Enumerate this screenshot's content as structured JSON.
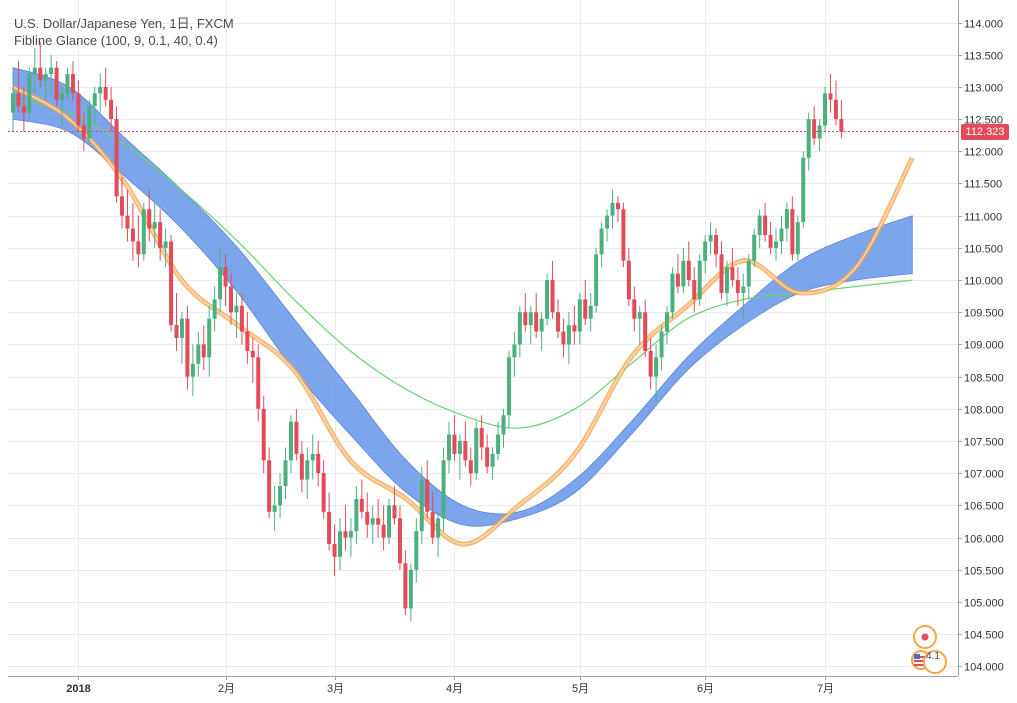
{
  "header": {
    "title": "U.S. Dollar/Japanese Yen, 1日, FXCM",
    "indicator": "Fibline Glance (100, 9, 0.1, 40, 0.4)"
  },
  "price_tag": {
    "label": "112.323",
    "color": "#e24b5a"
  },
  "markers": {
    "count_label": "4.1"
  },
  "colors": {
    "up": "#4bb07e",
    "down": "#e24b5a",
    "cloud": "#6f9bea",
    "fast_line": "#f3a24c",
    "slow_line": "#66d66e",
    "grid": "#e7ecf2"
  },
  "chart_data": {
    "type": "candlestick",
    "title": "U.S. Dollar/Japanese Yen, 1日, FXCM",
    "xlabel": "",
    "ylabel": "",
    "ylim": [
      103.85,
      114.35
    ],
    "y_ticks": [
      "104.000",
      "104.500",
      "105.000",
      "105.500",
      "106.000",
      "106.500",
      "107.000",
      "107.500",
      "108.000",
      "108.500",
      "109.000",
      "109.500",
      "110.000",
      "110.500",
      "111.000",
      "111.500",
      "112.000",
      "112.500",
      "113.000",
      "113.500",
      "114.000"
    ],
    "x_ticks": [
      {
        "label": "2018",
        "bar": 12
      },
      {
        "label": "2月",
        "bar": 39
      },
      {
        "label": "3月",
        "bar": 59
      },
      {
        "label": "4月",
        "bar": 81
      },
      {
        "label": "5月",
        "bar": 104
      },
      {
        "label": "6月",
        "bar": 127
      },
      {
        "label": "7月",
        "bar": 149
      }
    ],
    "bar_count": 166,
    "last_price": 112.323,
    "candles": [
      [
        112.6,
        113.2,
        112.3,
        112.9
      ],
      [
        112.9,
        113.4,
        112.6,
        112.7
      ],
      [
        112.7,
        113.0,
        112.3,
        112.6
      ],
      [
        112.6,
        113.3,
        112.5,
        113.2
      ],
      [
        113.2,
        113.6,
        112.9,
        113.3
      ],
      [
        113.3,
        113.7,
        113.0,
        113.1
      ],
      [
        113.1,
        113.3,
        112.8,
        113.2
      ],
      [
        113.2,
        113.5,
        112.9,
        113.3
      ],
      [
        113.3,
        113.4,
        112.7,
        112.8
      ],
      [
        112.8,
        113.0,
        112.4,
        112.9
      ],
      [
        112.9,
        113.3,
        112.8,
        113.2
      ],
      [
        113.2,
        113.4,
        112.8,
        112.9
      ],
      [
        112.9,
        113.1,
        112.3,
        112.4
      ],
      [
        112.4,
        112.6,
        112.0,
        112.2
      ],
      [
        112.2,
        112.8,
        112.1,
        112.7
      ],
      [
        112.7,
        113.0,
        112.4,
        112.9
      ],
      [
        112.9,
        113.2,
        112.6,
        113.0
      ],
      [
        113.0,
        113.3,
        112.7,
        112.8
      ],
      [
        112.8,
        113.0,
        112.3,
        112.5
      ],
      [
        112.5,
        112.7,
        111.2,
        111.3
      ],
      [
        111.3,
        111.6,
        110.8,
        111.0
      ],
      [
        111.0,
        111.4,
        110.6,
        110.8
      ],
      [
        110.8,
        111.2,
        110.3,
        110.6
      ],
      [
        110.6,
        111.0,
        110.2,
        110.4
      ],
      [
        110.4,
        111.2,
        110.3,
        111.1
      ],
      [
        111.1,
        111.4,
        110.6,
        110.8
      ],
      [
        110.8,
        111.2,
        110.5,
        110.9
      ],
      [
        110.9,
        111.1,
        110.3,
        110.5
      ],
      [
        110.5,
        110.8,
        110.2,
        110.6
      ],
      [
        110.6,
        110.7,
        109.2,
        109.3
      ],
      [
        109.3,
        109.8,
        108.9,
        109.1
      ],
      [
        109.1,
        109.5,
        108.7,
        109.4
      ],
      [
        109.4,
        109.6,
        108.3,
        108.5
      ],
      [
        108.5,
        109.0,
        108.2,
        108.7
      ],
      [
        108.7,
        109.2,
        108.5,
        109.0
      ],
      [
        109.0,
        109.3,
        108.6,
        108.8
      ],
      [
        108.8,
        109.6,
        108.5,
        109.4
      ],
      [
        109.4,
        109.9,
        109.2,
        109.7
      ],
      [
        109.7,
        110.5,
        109.5,
        110.2
      ],
      [
        110.2,
        110.4,
        109.6,
        109.9
      ],
      [
        109.9,
        110.1,
        109.3,
        109.5
      ],
      [
        109.5,
        109.8,
        109.1,
        109.6
      ],
      [
        109.6,
        109.8,
        109.0,
        109.2
      ],
      [
        109.2,
        109.5,
        108.7,
        108.9
      ],
      [
        108.9,
        109.1,
        108.4,
        108.8
      ],
      [
        108.8,
        109.0,
        107.8,
        108.0
      ],
      [
        108.0,
        108.2,
        107.0,
        107.2
      ],
      [
        107.2,
        107.4,
        106.3,
        106.4
      ],
      [
        106.4,
        106.8,
        106.1,
        106.5
      ],
      [
        106.5,
        107.0,
        106.3,
        106.8
      ],
      [
        106.8,
        107.4,
        106.6,
        107.2
      ],
      [
        107.2,
        107.9,
        107.0,
        107.8
      ],
      [
        107.8,
        108.0,
        107.2,
        107.3
      ],
      [
        107.3,
        107.5,
        106.7,
        106.9
      ],
      [
        106.9,
        107.4,
        106.6,
        107.2
      ],
      [
        107.2,
        107.6,
        106.9,
        107.3
      ],
      [
        107.3,
        107.5,
        106.8,
        107.0
      ],
      [
        107.0,
        107.2,
        106.3,
        106.4
      ],
      [
        106.4,
        106.7,
        105.8,
        105.9
      ],
      [
        105.9,
        106.2,
        105.4,
        105.7
      ],
      [
        105.7,
        106.3,
        105.5,
        106.1
      ],
      [
        106.1,
        106.5,
        105.8,
        106.0
      ],
      [
        106.0,
        106.3,
        105.7,
        106.1
      ],
      [
        106.1,
        106.8,
        105.9,
        106.6
      ],
      [
        106.6,
        106.9,
        106.3,
        106.4
      ],
      [
        106.4,
        106.7,
        106.0,
        106.2
      ],
      [
        106.2,
        106.5,
        105.9,
        106.3
      ],
      [
        106.3,
        106.6,
        106.0,
        106.2
      ],
      [
        106.2,
        106.5,
        105.8,
        106.0
      ],
      [
        106.0,
        106.6,
        105.9,
        106.5
      ],
      [
        106.5,
        106.8,
        106.2,
        106.3
      ],
      [
        106.3,
        106.5,
        105.5,
        105.6
      ],
      [
        105.6,
        105.8,
        104.8,
        104.9
      ],
      [
        104.9,
        105.6,
        104.7,
        105.5
      ],
      [
        105.5,
        106.3,
        105.3,
        106.1
      ],
      [
        106.1,
        107.1,
        105.9,
        106.9
      ],
      [
        106.9,
        107.2,
        106.3,
        106.4
      ],
      [
        106.4,
        106.7,
        105.9,
        106.0
      ],
      [
        106.0,
        106.4,
        105.7,
        106.3
      ],
      [
        106.3,
        107.4,
        106.1,
        107.2
      ],
      [
        107.2,
        107.8,
        107.0,
        107.6
      ],
      [
        107.6,
        107.9,
        107.2,
        107.3
      ],
      [
        107.3,
        107.6,
        106.9,
        107.5
      ],
      [
        107.5,
        107.8,
        107.1,
        107.2
      ],
      [
        107.2,
        107.4,
        106.8,
        107.0
      ],
      [
        107.0,
        107.8,
        106.9,
        107.7
      ],
      [
        107.7,
        107.9,
        107.2,
        107.4
      ],
      [
        107.4,
        107.6,
        107.0,
        107.1
      ],
      [
        107.1,
        107.4,
        106.9,
        107.3
      ],
      [
        107.3,
        107.8,
        107.2,
        107.6
      ],
      [
        107.6,
        108.0,
        107.4,
        107.9
      ],
      [
        107.9,
        108.9,
        107.7,
        108.8
      ],
      [
        108.8,
        109.2,
        108.5,
        109.0
      ],
      [
        109.0,
        109.6,
        108.8,
        109.5
      ],
      [
        109.5,
        109.8,
        109.2,
        109.3
      ],
      [
        109.3,
        109.6,
        109.0,
        109.5
      ],
      [
        109.5,
        109.8,
        109.1,
        109.2
      ],
      [
        109.2,
        109.5,
        108.9,
        109.4
      ],
      [
        109.4,
        110.1,
        109.3,
        110.0
      ],
      [
        110.0,
        110.3,
        109.4,
        109.5
      ],
      [
        109.5,
        109.7,
        109.1,
        109.2
      ],
      [
        109.2,
        109.4,
        108.8,
        109.0
      ],
      [
        109.0,
        109.5,
        108.7,
        109.3
      ],
      [
        109.3,
        109.6,
        109.0,
        109.2
      ],
      [
        109.2,
        109.8,
        109.0,
        109.7
      ],
      [
        109.7,
        110.0,
        109.3,
        109.4
      ],
      [
        109.4,
        109.8,
        109.2,
        109.6
      ],
      [
        109.6,
        110.5,
        109.5,
        110.4
      ],
      [
        110.4,
        110.9,
        110.2,
        110.8
      ],
      [
        110.8,
        111.1,
        110.6,
        111.0
      ],
      [
        111.0,
        111.4,
        110.8,
        111.2
      ],
      [
        111.2,
        111.3,
        110.9,
        111.1
      ],
      [
        111.1,
        111.2,
        110.2,
        110.3
      ],
      [
        110.3,
        110.5,
        109.6,
        109.7
      ],
      [
        109.7,
        109.9,
        109.2,
        109.4
      ],
      [
        109.4,
        109.6,
        109.0,
        109.5
      ],
      [
        109.5,
        109.7,
        108.8,
        108.9
      ],
      [
        108.9,
        109.1,
        108.3,
        108.5
      ],
      [
        108.5,
        109.0,
        108.1,
        108.8
      ],
      [
        108.8,
        109.3,
        108.6,
        109.2
      ],
      [
        109.2,
        109.6,
        109.0,
        109.5
      ],
      [
        109.5,
        110.2,
        109.4,
        110.1
      ],
      [
        110.1,
        110.4,
        109.8,
        109.9
      ],
      [
        109.9,
        110.5,
        109.8,
        110.3
      ],
      [
        110.3,
        110.6,
        109.9,
        110.0
      ],
      [
        110.0,
        110.2,
        109.5,
        109.7
      ],
      [
        109.7,
        110.4,
        109.6,
        110.3
      ],
      [
        110.3,
        110.7,
        110.1,
        110.6
      ],
      [
        110.6,
        110.9,
        110.4,
        110.7
      ],
      [
        110.7,
        110.8,
        110.2,
        110.4
      ],
      [
        110.4,
        110.6,
        109.7,
        109.8
      ],
      [
        109.8,
        110.3,
        109.6,
        110.2
      ],
      [
        110.2,
        110.5,
        109.9,
        110.0
      ],
      [
        110.0,
        110.2,
        109.6,
        109.8
      ],
      [
        109.8,
        110.1,
        109.4,
        109.9
      ],
      [
        109.9,
        110.4,
        109.7,
        110.3
      ],
      [
        110.3,
        110.8,
        110.2,
        110.7
      ],
      [
        110.7,
        111.1,
        110.5,
        111.0
      ],
      [
        111.0,
        111.2,
        110.6,
        110.7
      ],
      [
        110.7,
        110.9,
        110.4,
        110.5
      ],
      [
        110.5,
        110.8,
        110.3,
        110.6
      ],
      [
        110.6,
        111.0,
        110.4,
        110.8
      ],
      [
        110.8,
        111.2,
        110.6,
        111.1
      ],
      [
        111.1,
        111.3,
        110.3,
        110.4
      ],
      [
        110.4,
        111.0,
        110.3,
        110.9
      ],
      [
        110.9,
        112.0,
        110.8,
        111.9
      ],
      [
        111.9,
        112.6,
        111.7,
        112.5
      ],
      [
        112.5,
        112.7,
        112.1,
        112.2
      ],
      [
        112.2,
        112.5,
        112.0,
        112.4
      ],
      [
        112.4,
        113.0,
        112.3,
        112.9
      ],
      [
        112.9,
        113.2,
        112.6,
        112.8
      ],
      [
        112.8,
        113.1,
        112.4,
        112.5
      ],
      [
        112.5,
        112.8,
        112.2,
        112.3
      ]
    ],
    "series": [
      {
        "name": "",
        "type": "band",
        "upper": [
          113.3,
          113.0,
          112.2,
          111.4,
          110.5,
          109.4,
          108.3,
          107.2,
          106.5,
          106.4,
          106.9,
          107.8,
          108.8,
          109.6,
          110.3,
          110.7,
          111.0
        ],
        "lower": [
          112.5,
          112.3,
          111.6,
          110.8,
          109.8,
          108.6,
          107.6,
          106.7,
          106.2,
          106.3,
          106.7,
          107.6,
          108.6,
          109.3,
          109.8,
          110.0,
          110.1
        ]
      },
      {
        "name": "",
        "type": "line",
        "values": [
          112.8,
          112.6,
          112.1,
          111.4,
          110.6,
          109.7,
          108.9,
          108.3,
          107.9,
          107.7,
          108.0,
          108.7,
          109.4,
          109.7,
          109.8,
          109.9,
          110.0
        ]
      },
      {
        "name": "",
        "type": "line",
        "values": [
          113.0,
          112.5,
          111.5,
          110.0,
          109.3,
          108.6,
          107.2,
          106.6,
          105.9,
          106.5,
          107.3,
          108.8,
          109.6,
          110.3,
          109.8,
          110.2,
          111.9
        ]
      }
    ]
  }
}
